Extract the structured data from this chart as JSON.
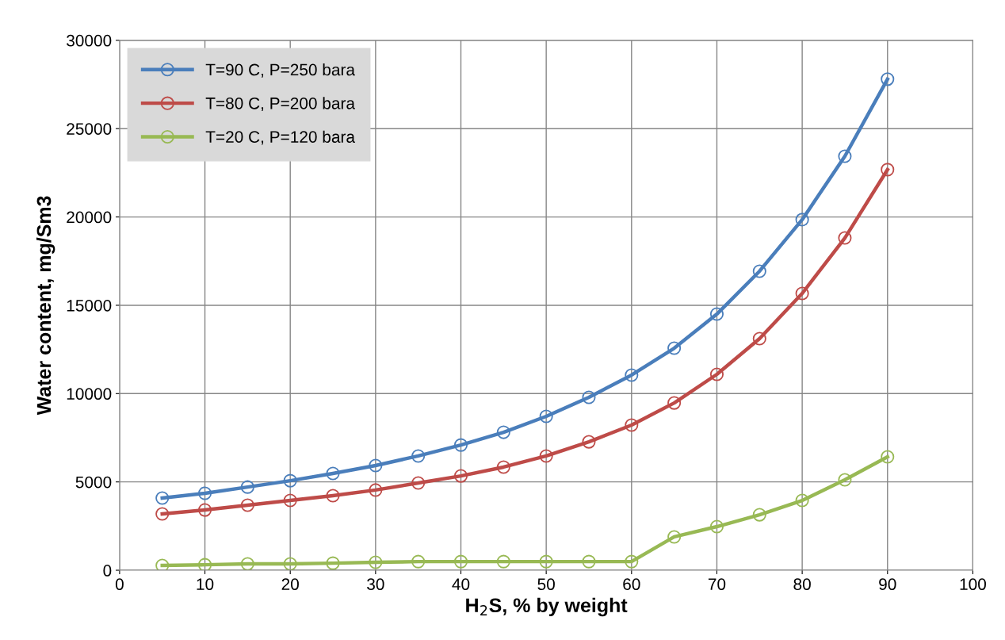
{
  "chart_data": {
    "type": "line",
    "xlabel": "H$_{2}$S, % by weight",
    "ylabel": "Water content, mg/Sm3",
    "x": [
      5,
      10,
      15,
      20,
      25,
      30,
      35,
      40,
      45,
      50,
      55,
      60,
      65,
      70,
      75,
      80,
      85,
      90
    ],
    "series": [
      {
        "name": "T=90 C, P=250 bara",
        "color": "#4a7ebb",
        "values": [
          4090,
          4360,
          4710,
          5070,
          5480,
          5930,
          6470,
          7090,
          7810,
          8710,
          9790,
          11050,
          12570,
          14500,
          16930,
          19850,
          23440,
          27800
        ]
      },
      {
        "name": "T=80 C, P=200 bara",
        "color": "#be4b48",
        "values": [
          3190,
          3410,
          3680,
          3950,
          4220,
          4540,
          4940,
          5340,
          5840,
          6470,
          7270,
          8220,
          9470,
          11090,
          13110,
          15670,
          18810,
          22680
        ]
      },
      {
        "name": "T=20 C, P=120 bara",
        "color": "#98b954",
        "values": [
          270,
          310,
          360,
          360,
          400,
          450,
          490,
          490,
          490,
          490,
          490,
          490,
          1890,
          2470,
          3140,
          3950,
          5120,
          6420
        ]
      }
    ],
    "xlim": [
      0,
      100
    ],
    "xticks": [
      0,
      10,
      20,
      30,
      40,
      50,
      60,
      70,
      80,
      90,
      100
    ],
    "ylim": [
      0,
      30000
    ],
    "yticks": [
      0,
      5000,
      10000,
      15000,
      20000,
      25000,
      30000
    ],
    "grid": true,
    "legend": "top left",
    "marker": "circle",
    "line_style": "solid"
  }
}
